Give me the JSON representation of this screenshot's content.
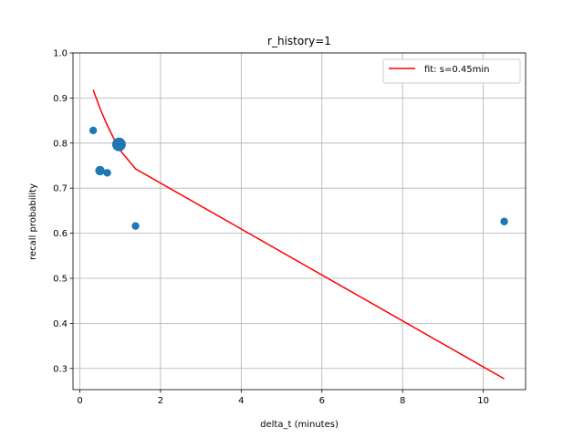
{
  "chart_data": {
    "type": "scatter",
    "title": "r_history=1",
    "xlabel": "delta_t (minutes)",
    "ylabel": "recall probability",
    "xlim": [
      -0.17,
      11.05
    ],
    "ylim": [
      0.253,
      1.0
    ],
    "xticks": [
      0,
      2,
      4,
      6,
      8,
      10
    ],
    "yticks": [
      0.3,
      0.4,
      0.5,
      0.6,
      0.7,
      0.8,
      0.9,
      1.0
    ],
    "grid": true,
    "legend_position": "top-right",
    "scatter_series": {
      "color": "#1f77b4",
      "points": [
        {
          "x": 0.33,
          "y": 0.828,
          "size": "small"
        },
        {
          "x": 0.5,
          "y": 0.739,
          "size": "medium"
        },
        {
          "x": 0.68,
          "y": 0.734,
          "size": "small"
        },
        {
          "x": 0.97,
          "y": 0.797,
          "size": "large"
        },
        {
          "x": 1.38,
          "y": 0.616,
          "size": "small"
        },
        {
          "x": 10.52,
          "y": 0.626,
          "size": "small"
        }
      ]
    },
    "fit_series": {
      "name": "fit: s=0.45min",
      "color": "#ff0000",
      "x": [
        0.33,
        0.5,
        0.68,
        0.97,
        1.38,
        10.52
      ],
      "y": [
        0.918,
        0.877,
        0.839,
        0.787,
        0.743,
        0.277
      ]
    }
  }
}
